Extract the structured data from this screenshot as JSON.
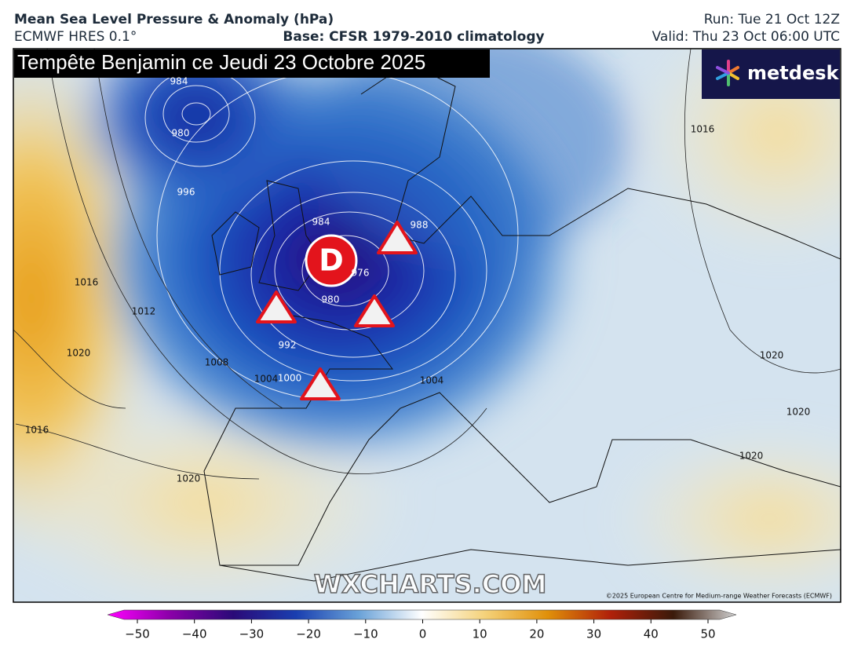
{
  "header": {
    "title": "Mean Sea Level Pressure & Anomaly (hPa)",
    "model": "ECMWF HRES 0.1°",
    "base": "Base: CFSR 1979-2010 climatology",
    "run": "Run: Tue 21 Oct 12Z",
    "valid": "Valid: Thu 23 Oct 06:00 UTC"
  },
  "map": {
    "title": "Tempête Benjamin ce Jeudi 23 Octobre 2025",
    "low_marker": "D",
    "logo": "metdesk",
    "watermark": "WXCHARTS.COM",
    "copyright": "©2025 European Centre for Medium-range Weather Forecasts (ECMWF)",
    "isobar_labels": [
      984,
      980,
      996,
      1016,
      1012,
      1020,
      1008,
      1004,
      1000,
      992,
      984,
      976,
      980,
      988,
      1004,
      1016,
      1020,
      1020,
      1020,
      1016,
      1020
    ]
  },
  "colorbar": {
    "ticks": [
      {
        "value": -50,
        "label": "−50"
      },
      {
        "value": -40,
        "label": "−40"
      },
      {
        "value": -30,
        "label": "−30"
      },
      {
        "value": -20,
        "label": "−20"
      },
      {
        "value": -10,
        "label": "−10"
      },
      0,
      10,
      20,
      30,
      40,
      50
    ]
  }
}
